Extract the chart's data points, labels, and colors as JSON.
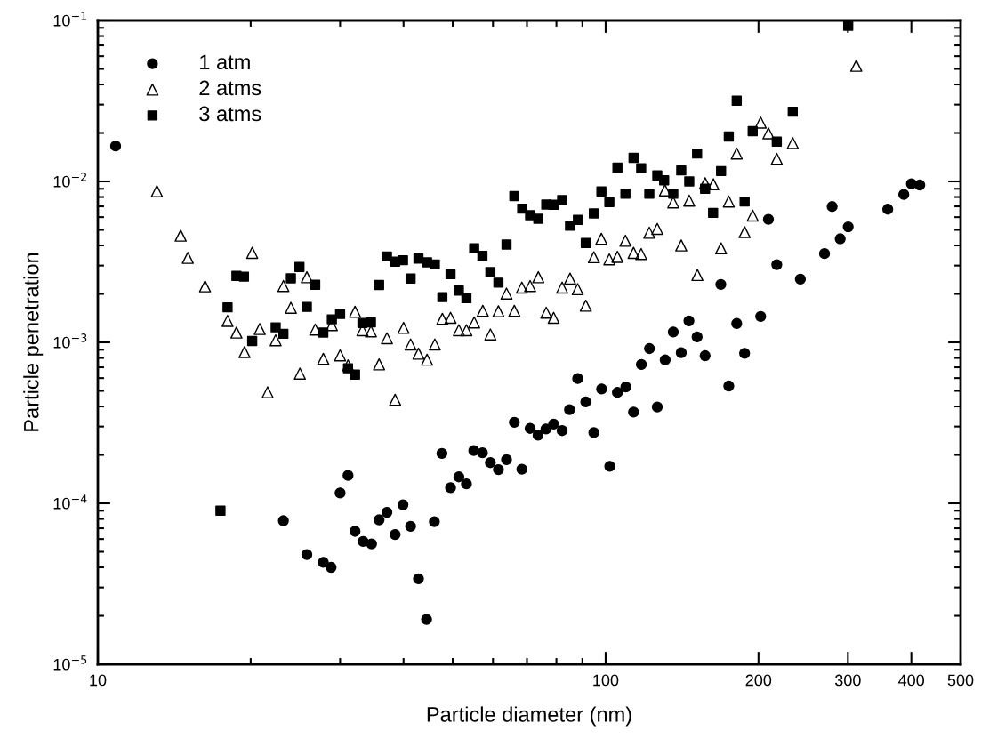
{
  "chart_data": {
    "type": "scatter",
    "xlabel": "Particle diameter (nm)",
    "ylabel": "Particle penetration",
    "log": "xy",
    "xlim": [
      10,
      500
    ],
    "ylim": [
      1e-05,
      0.1
    ],
    "xticks": [
      10,
      100,
      200,
      300,
      400,
      500
    ],
    "yticks": [
      {
        "value": 1e-05,
        "label": "10$^{−5}$"
      },
      {
        "value": 0.0001,
        "label": "10$^{−4}$"
      },
      {
        "value": 0.001,
        "label": "10$^{−3}$"
      },
      {
        "value": 0.01,
        "label": "10$^{−2}$"
      },
      {
        "value": 0.1,
        "label": "10$^{−1}$"
      }
    ],
    "grid": false,
    "legend": "top left",
    "series": [
      {
        "name": "1 atm",
        "color": "#000000",
        "marker": "circle",
        "x": [
          10.84,
          23.2,
          25.8,
          27.8,
          28.8,
          30.0,
          31.1,
          32.1,
          33.3,
          34.6,
          35.8,
          37.1,
          38.5,
          39.9,
          41.3,
          42.8,
          44.4,
          46.0,
          47.6,
          49.5,
          51.4,
          53.2,
          55.0,
          57.2,
          59.3,
          61.5,
          63.8,
          66.1,
          68.4,
          71.0,
          73.6,
          76.3,
          79.0,
          82.1,
          84.9,
          88.1,
          91.4,
          94.8,
          98.2,
          101.9,
          105.5,
          109.6,
          113.5,
          117.6,
          122.0,
          126.4,
          131.0,
          135.9,
          140.9,
          145.9,
          151.4,
          157.0,
          168.6,
          174.8,
          181.2,
          187.8,
          202,
          209.2,
          217.3,
          241.8,
          269.8,
          279.3,
          289.7,
          300.4,
          359.4,
          386.5,
          400.1,
          415.6
        ],
        "values": [
          0.0166,
          7.8e-05,
          4.8e-05,
          4.3e-05,
          4e-05,
          0.000116,
          0.000149,
          6.7e-05,
          5.8e-05,
          5.6e-05,
          7.9e-05,
          8.8e-05,
          6.4e-05,
          9.8e-05,
          7.2e-05,
          3.4e-05,
          1.9e-05,
          7.7e-05,
          0.000204,
          0.000125,
          0.000146,
          0.000132,
          0.000213,
          0.000206,
          0.000179,
          0.000162,
          0.000187,
          0.000319,
          0.000163,
          0.000292,
          0.000265,
          0.00029,
          0.000311,
          0.000283,
          0.000382,
          0.000596,
          0.000427,
          0.000275,
          0.000514,
          0.00017,
          0.000489,
          0.000529,
          0.000369,
          0.000728,
          0.000915,
          0.000397,
          0.000778,
          0.00116,
          0.000862,
          0.00136,
          0.00108,
          0.000826,
          0.00229,
          0.000536,
          0.00131,
          0.000855,
          0.00145,
          0.00581,
          0.00304,
          0.00247,
          0.00356,
          0.00698,
          0.0044,
          0.00522,
          0.00672,
          0.0083,
          0.00966,
          0.0095
        ]
      },
      {
        "name": "2 atms",
        "color": "#000000",
        "marker": "triangle",
        "x": [
          13.07,
          14.56,
          15.04,
          16.26,
          18.01,
          18.75,
          19.45,
          20.14,
          20.84,
          21.6,
          22.4,
          23.2,
          24.0,
          25.0,
          25.8,
          26.8,
          27.8,
          28.9,
          30.0,
          31.1,
          32.1,
          33.2,
          34.5,
          35.8,
          37.1,
          38.5,
          40.0,
          41.3,
          42.8,
          44.5,
          46.1,
          47.7,
          49.5,
          51.4,
          53.2,
          55.1,
          57.3,
          59.3,
          61.5,
          63.8,
          66.1,
          68.4,
          71.0,
          73.7,
          76.4,
          79.0,
          82.1,
          85.1,
          88.1,
          91.4,
          94.8,
          98.1,
          101.7,
          105.5,
          109.4,
          113.5,
          117.5,
          121.9,
          126.4,
          130.9,
          135.9,
          140.9,
          146.1,
          151.6,
          157.0,
          163.0,
          168.8,
          174.8,
          181.2,
          187.8,
          194.8,
          202,
          209.2,
          217.3,
          233.6,
          311.6
        ],
        "values": [
          0.0087,
          0.0046,
          0.00335,
          0.00223,
          0.00136,
          0.00115,
          0.00087,
          0.0036,
          0.00121,
          0.00049,
          0.00103,
          0.00224,
          0.00164,
          0.00064,
          0.00254,
          0.0012,
          0.00079,
          0.00128,
          0.00083,
          0.00072,
          0.00155,
          0.00119,
          0.00117,
          0.00073,
          0.00106,
          0.00044,
          0.00123,
          0.00097,
          0.00085,
          0.00078,
          0.00097,
          0.0014,
          0.00142,
          0.00119,
          0.00119,
          0.00133,
          0.00157,
          0.00112,
          0.00156,
          0.00201,
          0.00157,
          0.00219,
          0.00224,
          0.00254,
          0.00153,
          0.00142,
          0.00219,
          0.00249,
          0.00214,
          0.00169,
          0.00338,
          0.0044,
          0.00328,
          0.0034,
          0.00428,
          0.0036,
          0.00354,
          0.0048,
          0.00507,
          0.0088,
          0.0074,
          0.004,
          0.0076,
          0.00262,
          0.00975,
          0.0096,
          0.00384,
          0.0075,
          0.0149,
          0.00484,
          0.00614,
          0.0232,
          0.0199,
          0.0138,
          0.0173,
          0.0523
        ]
      },
      {
        "name": "3 atms",
        "color": "#000000",
        "marker": "square",
        "x": [
          17.44,
          18.01,
          18.75,
          19.4,
          20.14,
          22.4,
          23.2,
          24.0,
          24.95,
          25.8,
          26.8,
          27.8,
          28.9,
          30.0,
          31.1,
          32.1,
          33.2,
          34.5,
          35.8,
          37.1,
          38.5,
          39.9,
          41.3,
          42.8,
          44.5,
          46.1,
          47.7,
          49.5,
          51.4,
          53.2,
          55.1,
          57.2,
          59.3,
          61.5,
          63.8,
          66.1,
          68.5,
          71.0,
          73.7,
          76.4,
          79.0,
          82.1,
          85.1,
          88.2,
          91.4,
          94.8,
          98.1,
          101.7,
          105.5,
          109.4,
          113.5,
          117.5,
          121.9,
          126.4,
          130.4,
          135.9,
          140.9,
          146.1,
          151.4,
          157.0,
          162.8,
          168.8,
          174.8,
          181.2,
          187.8,
          194.8,
          217.3,
          233.6,
          300.4
        ],
        "values": [
          9e-05,
          0.00165,
          0.00259,
          0.00256,
          0.00102,
          0.00124,
          0.00113,
          0.0025,
          0.00294,
          0.00166,
          0.00228,
          0.00115,
          0.00139,
          0.0015,
          0.00069,
          0.00063,
          0.00132,
          0.00133,
          0.00227,
          0.00342,
          0.00317,
          0.00324,
          0.00249,
          0.00332,
          0.00314,
          0.00305,
          0.00191,
          0.00265,
          0.0021,
          0.00188,
          0.00384,
          0.00345,
          0.00273,
          0.00235,
          0.00405,
          0.0081,
          0.00677,
          0.00617,
          0.00586,
          0.00718,
          0.00716,
          0.00766,
          0.0053,
          0.00577,
          0.00414,
          0.00633,
          0.00866,
          0.00743,
          0.0122,
          0.0084,
          0.014,
          0.01206,
          0.0084,
          0.01089,
          0.01017,
          0.0084,
          0.0117,
          0.01,
          0.0149,
          0.009,
          0.00638,
          0.0116,
          0.019,
          0.0317,
          0.0075,
          0.0205,
          0.01766,
          0.0271,
          0.0927
        ]
      }
    ]
  }
}
